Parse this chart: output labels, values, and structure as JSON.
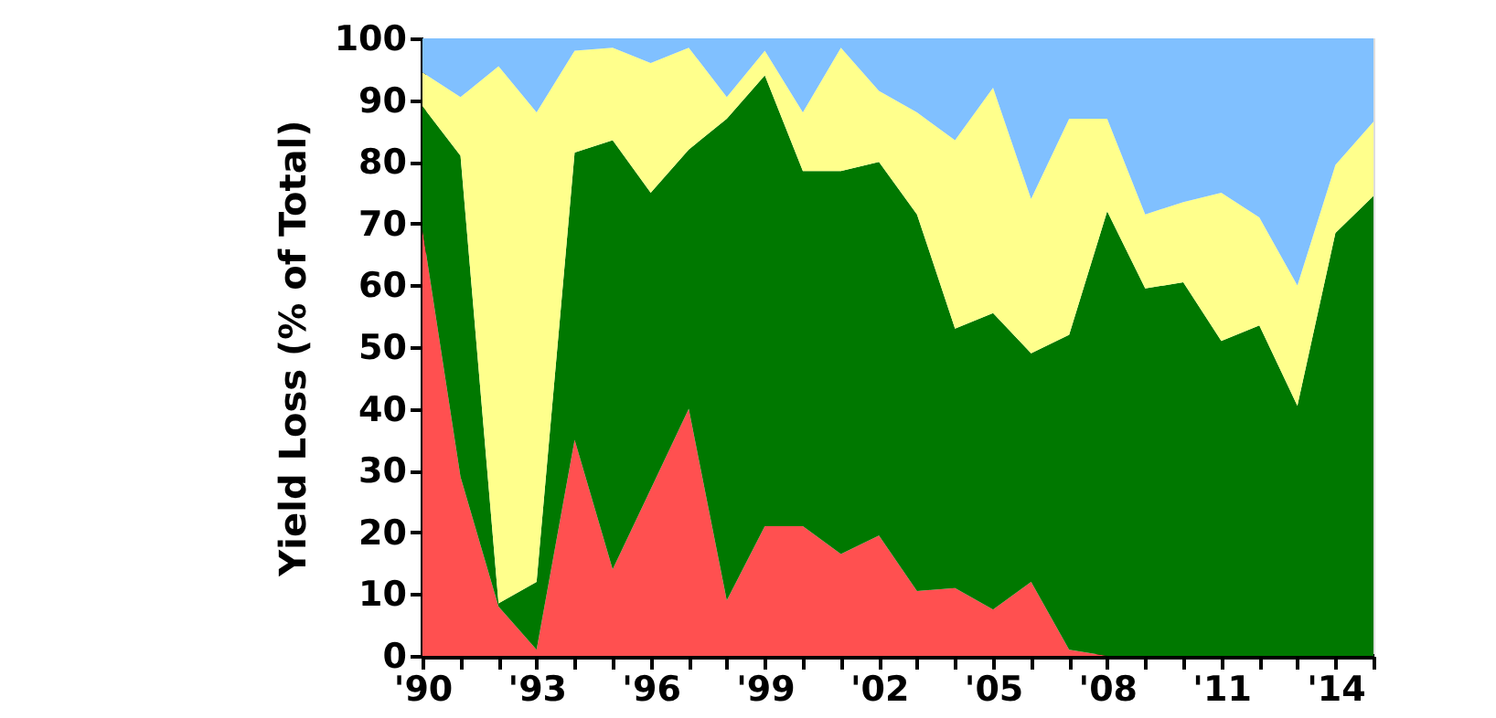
{
  "chart_data": {
    "type": "area",
    "stacked": true,
    "ylabel": "Yield Loss (% of Total)",
    "x": [
      1990,
      1991,
      1992,
      1993,
      1994,
      1995,
      1996,
      1997,
      1998,
      1999,
      2000,
      2001,
      2002,
      2003,
      2004,
      2005,
      2006,
      2007,
      2008,
      2009,
      2010,
      2011,
      2012,
      2013,
      2014,
      2015
    ],
    "series": [
      {
        "color": "#ff5050",
        "values": [
          69,
          29,
          8,
          1,
          35,
          14,
          27,
          40,
          9,
          21,
          21,
          16.5,
          19.5,
          10.5,
          11,
          7.5,
          12,
          1,
          0,
          0,
          0,
          0,
          0,
          0,
          0,
          0
        ]
      },
      {
        "color": "#007800",
        "values": [
          20,
          52,
          0.5,
          11,
          46.5,
          69.5,
          48,
          42,
          78,
          73,
          57.5,
          62,
          60.5,
          61,
          42,
          48,
          37,
          51,
          72,
          59.5,
          60.5,
          51,
          53.5,
          40.5,
          68.5,
          74.5
        ]
      },
      {
        "color": "#ffff8c",
        "values": [
          5.5,
          9.5,
          87,
          76,
          16.5,
          15,
          21,
          16.5,
          3.5,
          4,
          9.5,
          20,
          11.5,
          16.5,
          30.5,
          36.5,
          25,
          35,
          15,
          12,
          13,
          24,
          17.5,
          19.5,
          11,
          12
        ]
      },
      {
        "color": "#80c0ff",
        "values": [
          5.5,
          9.5,
          4.5,
          12,
          2,
          1.5,
          4,
          1.5,
          9.5,
          2,
          12,
          1.5,
          8.5,
          12,
          16.5,
          8,
          26,
          13,
          13,
          28.5,
          26.5,
          25,
          29,
          40,
          20.5,
          13.5
        ]
      }
    ],
    "xlim": [
      1990,
      2015
    ],
    "xticks": [
      {
        "value": 1990,
        "label": "'90"
      },
      {
        "value": 1991,
        "label": null
      },
      {
        "value": 1992,
        "label": null
      },
      {
        "value": 1993,
        "label": "'93"
      },
      {
        "value": 1994,
        "label": null
      },
      {
        "value": 1995,
        "label": null
      },
      {
        "value": 1996,
        "label": "'96"
      },
      {
        "value": 1997,
        "label": null
      },
      {
        "value": 1998,
        "label": null
      },
      {
        "value": 1999,
        "label": "'99"
      },
      {
        "value": 2000,
        "label": null
      },
      {
        "value": 2001,
        "label": null
      },
      {
        "value": 2002,
        "label": "'02"
      },
      {
        "value": 2003,
        "label": null
      },
      {
        "value": 2004,
        "label": null
      },
      {
        "value": 2005,
        "label": "'05"
      },
      {
        "value": 2006,
        "label": null
      },
      {
        "value": 2007,
        "label": null
      },
      {
        "value": 2008,
        "label": "'08"
      },
      {
        "value": 2009,
        "label": null
      },
      {
        "value": 2010,
        "label": null
      },
      {
        "value": 2011,
        "label": "'11"
      },
      {
        "value": 2012,
        "label": null
      },
      {
        "value": 2013,
        "label": null
      },
      {
        "value": 2014,
        "label": "'14"
      },
      {
        "value": 2015,
        "label": null
      }
    ],
    "ylim": [
      0,
      100
    ],
    "yticks": [
      0,
      10,
      20,
      30,
      40,
      50,
      60,
      70,
      80,
      90,
      100
    ],
    "grid": false,
    "legend": false
  }
}
